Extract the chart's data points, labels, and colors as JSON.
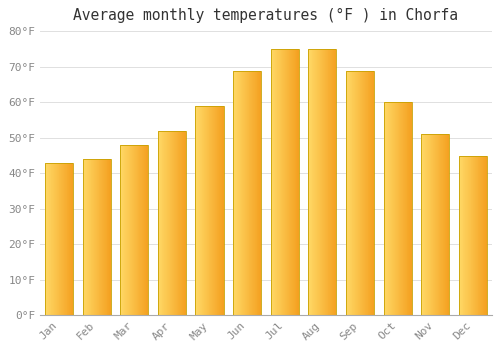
{
  "title": "Average monthly temperatures (°F ) in Chorfa",
  "months": [
    "Jan",
    "Feb",
    "Mar",
    "Apr",
    "May",
    "Jun",
    "Jul",
    "Aug",
    "Sep",
    "Oct",
    "Nov",
    "Dec"
  ],
  "values": [
    43,
    44,
    48,
    52,
    59,
    69,
    75,
    75,
    69,
    60,
    51,
    45
  ],
  "bar_color_left": "#FFD966",
  "bar_color_right": "#F4A020",
  "bar_edge_color": "#C8A000",
  "background_color": "#FFFFFF",
  "grid_color": "#E0E0E0",
  "tick_label_color": "#888888",
  "title_color": "#333333",
  "ylim": [
    0,
    80
  ],
  "yticks": [
    0,
    10,
    20,
    30,
    40,
    50,
    60,
    70,
    80
  ],
  "ytick_labels": [
    "0°F",
    "10°F",
    "20°F",
    "30°F",
    "40°F",
    "50°F",
    "60°F",
    "70°F",
    "80°F"
  ],
  "title_fontsize": 10.5,
  "tick_fontsize": 8,
  "bar_width": 0.75
}
